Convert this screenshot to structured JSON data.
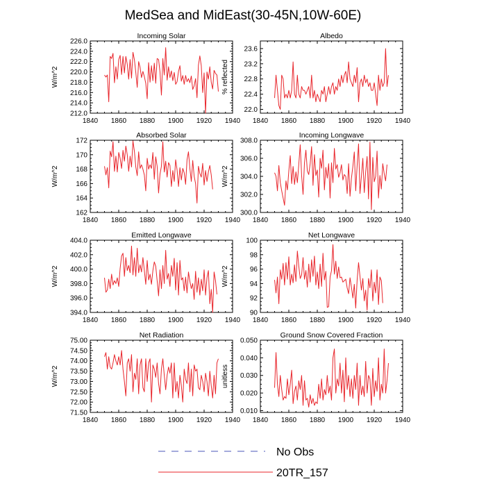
{
  "figure": {
    "title": "MedSea and MidEast(30-45N,10W-60E)",
    "legend": [
      {
        "label": "No Obs",
        "color": "#4a55b8",
        "style": "dashed"
      },
      {
        "label": "20TR_157",
        "color": "#e8242a",
        "style": "solid"
      }
    ]
  },
  "chart_data": [
    {
      "type": "line",
      "title": "Incoming Solar",
      "xlabel": "",
      "ylabel": "W/m^2",
      "xlim": [
        1840,
        1940
      ],
      "ylim": [
        212,
        226
      ],
      "xticks": [
        "1840",
        "1860",
        "1880",
        "1900",
        "1920",
        "1940"
      ],
      "yticks": [
        "212.0",
        "214.0",
        "216.0",
        "218.0",
        "220.0",
        "222.0",
        "224.0",
        "226.0"
      ],
      "x0": 1850,
      "series": [
        {
          "name": "20TR_157",
          "values": [
            219.4,
            219.0,
            219.4,
            214.2,
            223.0,
            222.6,
            223.6,
            217.9,
            221.0,
            218.6,
            222.4,
            223.2,
            219.5,
            223.0,
            219.8,
            223.0,
            221.5,
            218.6,
            222.4,
            218.8,
            223.8,
            222.4,
            219.9,
            217.0,
            222.0,
            220.9,
            218.9,
            220.1,
            219.1,
            217.8,
            214.8,
            221.8,
            218.0,
            221.2,
            218.3,
            221.7,
            217.8,
            222.6,
            222.4,
            220.0,
            215.5,
            222.6,
            219.4,
            224.7,
            218.4,
            221.0,
            218.9,
            220.2,
            218.3,
            219.9,
            217.6,
            218.1,
            220.1,
            221.2,
            218.2,
            219.3,
            217.6,
            219.3,
            218.1,
            218.7,
            217.9,
            219.2,
            216.6,
            217.3,
            218.7,
            215.0,
            221.3,
            223.1,
            221.2,
            216.0,
            219.8,
            212.0,
            220.0,
            218.6,
            221.0,
            218.0,
            216.7,
            220.3,
            219.7,
            219.4,
            216.2
          ]
        }
      ]
    },
    {
      "type": "line",
      "title": "Albedo",
      "xlabel": "",
      "ylabel": "% reflected",
      "xlim": [
        1840,
        1940
      ],
      "ylim": [
        21.9,
        23.8
      ],
      "xticks": [
        "1840",
        "1860",
        "1880",
        "1900",
        "1920",
        "1940"
      ],
      "yticks": [
        "22.0",
        "22.4",
        "22.8",
        "23.2",
        "23.6"
      ],
      "x0": 1850,
      "series": [
        {
          "name": "20TR_157",
          "values": [
            22.3,
            22.9,
            22.5,
            22.1,
            22.0,
            22.9,
            22.8,
            22.3,
            22.4,
            22.3,
            22.5,
            22.3,
            22.5,
            23.25,
            22.4,
            22.3,
            22.9,
            22.4,
            22.3,
            22.6,
            22.5,
            22.5,
            22.4,
            22.5,
            22.6,
            22.3,
            22.9,
            22.3,
            22.5,
            22.2,
            22.4,
            22.3,
            22.2,
            22.5,
            22.4,
            22.6,
            22.2,
            22.4,
            22.6,
            22.4,
            22.6,
            22.7,
            22.4,
            22.6,
            22.5,
            22.8,
            22.6,
            22.9,
            22.7,
            22.9,
            23.0,
            22.7,
            23.25,
            22.8,
            22.7,
            22.6,
            22.9,
            22.7,
            23.1,
            22.2,
            22.7,
            22.8,
            22.6,
            22.9,
            22.7,
            22.8,
            22.6,
            22.7,
            22.5,
            22.5,
            22.7,
            22.4,
            22.1,
            22.9,
            22.5,
            22.8,
            22.6,
            22.7,
            23.6,
            22.6,
            22.9
          ]
        }
      ]
    },
    {
      "type": "line",
      "title": "Absorbed Solar",
      "xlabel": "",
      "ylabel": "W/m^2",
      "xlim": [
        1840,
        1940
      ],
      "ylim": [
        162,
        172
      ],
      "xticks": [
        "1840",
        "1860",
        "1880",
        "1900",
        "1920",
        "1940"
      ],
      "yticks": [
        "162",
        "164",
        "166",
        "168",
        "170",
        "172"
      ],
      "x0": 1850,
      "series": [
        {
          "name": "20TR_157",
          "values": [
            168.4,
            167.2,
            168.2,
            165.4,
            170.5,
            169.7,
            171.8,
            167.7,
            169.8,
            167.6,
            170.3,
            169.5,
            168.1,
            170.6,
            169.1,
            171.2,
            170.0,
            167.7,
            169.8,
            168.3,
            171.9,
            170.5,
            168.3,
            167.1,
            170.4,
            168.1,
            168.6,
            168.0,
            167.2,
            165.0,
            169.5,
            168.0,
            168.6,
            168.1,
            170.3,
            166.6,
            169.7,
            168.4,
            164.7,
            167.3,
            168.4,
            171.8,
            167.6,
            169.1,
            166.9,
            168.9,
            168.5,
            165.6,
            167.8,
            166.3,
            169.3,
            167.9,
            165.6,
            168.2,
            166.5,
            168.1,
            167.5,
            165.9,
            169.3,
            170.4,
            168.1,
            166.3,
            169.2,
            167.0,
            166.0,
            163.3,
            168.4,
            167.4,
            166.9,
            168.8,
            165.8,
            167.8,
            166.3,
            167.6,
            168.5,
            167.2,
            165.2
          ]
        }
      ]
    },
    {
      "type": "line",
      "title": "Incoming Longwave",
      "xlabel": "",
      "ylabel": "W/m^2",
      "xlim": [
        1840,
        1940
      ],
      "ylim": [
        300,
        308
      ],
      "xticks": [
        "1840",
        "1860",
        "1880",
        "1900",
        "1920",
        "1940"
      ],
      "yticks": [
        "300.0",
        "302.0",
        "304.0",
        "306.0",
        "308.0"
      ],
      "x0": 1850,
      "series": [
        {
          "name": "20TR_157",
          "values": [
            304.4,
            304.0,
            302.4,
            305.2,
            303.3,
            302.4,
            301.6,
            300.8,
            303.5,
            302.5,
            304.6,
            306.3,
            303.2,
            305.1,
            303.1,
            304.5,
            303.3,
            305.3,
            307.5,
            304.1,
            302.0,
            305.5,
            306.9,
            304.6,
            304.2,
            305.4,
            307.3,
            303.0,
            306.4,
            304.1,
            304.7,
            301.7,
            306.0,
            304.9,
            306.9,
            302.5,
            305.0,
            303.8,
            305.4,
            301.6,
            305.5,
            303.3,
            307.1,
            304.8,
            305.3,
            303.9,
            304.4,
            305.3,
            303.6,
            304.2,
            304.0,
            302.1,
            305.4,
            301.8,
            303.8,
            305.1,
            306.7,
            302.4,
            305.2,
            307.6,
            302.1,
            304.0,
            306.0,
            302.2,
            304.5,
            306.2,
            301.5,
            307.8,
            300.3,
            306.1,
            303.4,
            304.0,
            306.8,
            301.6,
            304.1,
            302.6,
            305.4,
            304.3,
            303.5,
            305.3
          ]
        }
      ]
    },
    {
      "type": "line",
      "title": "Emitted Longwave",
      "xlabel": "",
      "ylabel": "W/m^2",
      "xlim": [
        1840,
        1940
      ],
      "ylim": [
        394,
        404
      ],
      "xticks": [
        "1840",
        "1860",
        "1880",
        "1900",
        "1920",
        "1940"
      ],
      "yticks": [
        "394.0",
        "396.0",
        "398.0",
        "400.0",
        "402.0",
        "404.0"
      ],
      "x0": 1850,
      "series": [
        {
          "name": "20TR_157",
          "values": [
            398.8,
            396.8,
            397.1,
            398.6,
            397.3,
            399.3,
            397.8,
            398.4,
            398.0,
            398.8,
            397.6,
            400.1,
            401.8,
            402.2,
            399.0,
            401.6,
            399.8,
            400.5,
            399.5,
            403.2,
            399.2,
            401.6,
            399.0,
            402.9,
            399.5,
            400.6,
            399.6,
            401.6,
            399.8,
            397.9,
            401.2,
            398.5,
            399.3,
            397.9,
            399.8,
            401.0,
            400.4,
            398.4,
            396.3,
            399.9,
            397.3,
            400.5,
            398.0,
            402.6,
            398.6,
            399.4,
            397.6,
            400.5,
            399.0,
            401.5,
            397.1,
            400.9,
            396.4,
            401.2,
            398.5,
            398.8,
            397.0,
            398.9,
            396.7,
            399.6,
            398.3,
            397.3,
            398.0,
            395.8,
            399.7,
            396.8,
            398.8,
            396.4,
            398.6,
            397.0,
            399.9,
            396.4,
            398.8,
            399.8,
            395.2,
            397.2,
            394.0,
            399.6,
            398.4,
            396.5
          ]
        }
      ]
    },
    {
      "type": "line",
      "title": "Net Longwave",
      "xlabel": "",
      "ylabel": "W/m^2",
      "xlim": [
        1840,
        1940
      ],
      "ylim": [
        90,
        100
      ],
      "xticks": [
        "1840",
        "1860",
        "1880",
        "1900",
        "1920",
        "1940"
      ],
      "yticks": [
        "90",
        "92",
        "94",
        "96",
        "98",
        "100"
      ],
      "x0": 1850,
      "series": [
        {
          "name": "20TR_157",
          "values": [
            94.5,
            92.7,
            94.9,
            91.2,
            95.9,
            94.6,
            96.8,
            93.8,
            96.9,
            94.6,
            97.7,
            93.8,
            95.3,
            94.1,
            96.6,
            94.3,
            98.5,
            96.4,
            94.7,
            95.2,
            97.6,
            94.6,
            95.8,
            93.5,
            96.7,
            94.2,
            97.3,
            95.0,
            97.8,
            93.8,
            95.6,
            93.3,
            96.7,
            93.6,
            98.2,
            94.5,
            95.7,
            90.7,
            90.8,
            94.9,
            95.8,
            99.4,
            95.3,
            97.1,
            94.7,
            96.3,
            94.8,
            94.9,
            94.2,
            94.4,
            94.6,
            93.4,
            92.6,
            94.8,
            93.5,
            92.0,
            93.9,
            90.6,
            94.5,
            96.9,
            95.0,
            93.1,
            94.7,
            91.6,
            93.1,
            90.3,
            94.7,
            93.4,
            95.9,
            91.6,
            94.2,
            92.7,
            95.9,
            91.1,
            94.9,
            94.4,
            91.3
          ]
        }
      ]
    },
    {
      "type": "line",
      "title": "Net Radiation",
      "xlabel": "",
      "ylabel": "W/m^2",
      "xlim": [
        1840,
        1940
      ],
      "ylim": [
        71.5,
        75
      ],
      "xticks": [
        "1840",
        "1860",
        "1880",
        "1900",
        "1920",
        "1940"
      ],
      "yticks": [
        "71.50",
        "72.00",
        "72.50",
        "73.00",
        "73.50",
        "74.00",
        "74.50",
        "75.00"
      ],
      "x0": 1850,
      "series": [
        {
          "name": "20TR_157",
          "values": [
            74.2,
            74.4,
            73.6,
            74.2,
            73.7,
            73.6,
            73.9,
            74.3,
            74.0,
            73.8,
            74.2,
            73.8,
            74.5,
            73.6,
            73.0,
            72.3,
            73.9,
            74.1,
            73.5,
            74.3,
            72.5,
            73.4,
            73.1,
            74.1,
            72.4,
            73.8,
            74.1,
            72.7,
            72.5,
            74.1,
            73.0,
            73.9,
            74.1,
            72.0,
            73.8,
            73.6,
            73.2,
            73.9,
            72.9,
            72.4,
            73.6,
            74.1,
            73.3,
            72.6,
            73.3,
            73.7,
            73.4,
            73.9,
            72.2,
            73.9,
            72.5,
            73.0,
            72.2,
            73.3,
            72.8,
            72.0,
            73.6,
            73.1,
            72.9,
            73.9,
            72.5,
            73.6,
            72.3,
            73.8,
            73.5,
            73.6,
            72.7,
            72.6,
            73.3,
            73.0,
            72.5,
            73.4,
            73.0,
            72.3,
            73.5,
            72.8,
            72.2,
            73.3,
            72.4,
            73.9,
            74.1
          ]
        }
      ]
    },
    {
      "type": "line",
      "title": "Ground Snow Covered Fraction",
      "xlabel": "",
      "ylabel": "unitless",
      "xlim": [
        1840,
        1940
      ],
      "ylim": [
        0.009,
        0.05
      ],
      "xticks": [
        "1840",
        "1860",
        "1880",
        "1900",
        "1920",
        "1940"
      ],
      "yticks": [
        "0.010",
        "0.020",
        "0.030",
        "0.040",
        "0.050"
      ],
      "x0": 1850,
      "series": [
        {
          "name": "20TR_157",
          "values": [
            0.023,
            0.043,
            0.025,
            0.018,
            0.03,
            0.022,
            0.016,
            0.018,
            0.017,
            0.028,
            0.019,
            0.025,
            0.033,
            0.014,
            0.021,
            0.024,
            0.016,
            0.027,
            0.022,
            0.03,
            0.013,
            0.027,
            0.016,
            0.017,
            0.012,
            0.019,
            0.014,
            0.017,
            0.013,
            0.015,
            0.014,
            0.025,
            0.017,
            0.028,
            0.016,
            0.022,
            0.019,
            0.03,
            0.02,
            0.024,
            0.016,
            0.04,
            0.045,
            0.02,
            0.028,
            0.024,
            0.037,
            0.02,
            0.033,
            0.015,
            0.04,
            0.022,
            0.03,
            0.018,
            0.028,
            0.017,
            0.03,
            0.022,
            0.037,
            0.013,
            0.03,
            0.019,
            0.024,
            0.018,
            0.038,
            0.02,
            0.03,
            0.028,
            0.013,
            0.034,
            0.018,
            0.027,
            0.021,
            0.04,
            0.016,
            0.025,
            0.02,
            0.045,
            0.02,
            0.027,
            0.037
          ]
        }
      ]
    }
  ]
}
